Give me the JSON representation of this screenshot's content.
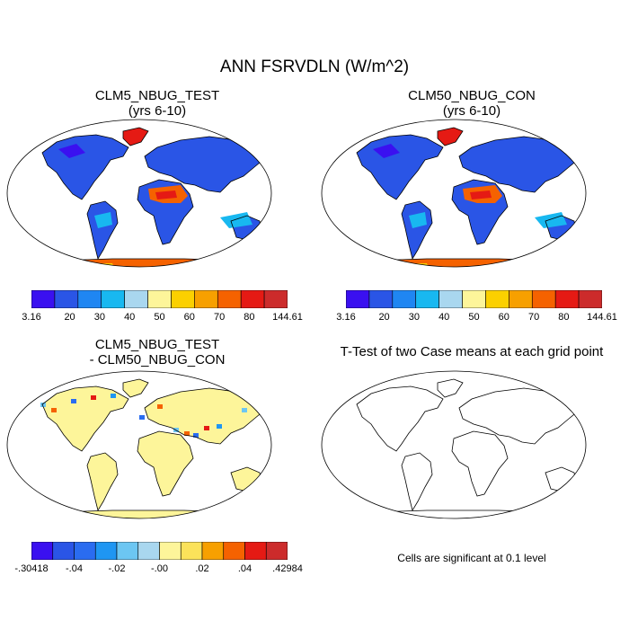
{
  "figure_title": "ANN FSRVDLN (W/m^2)",
  "panels": {
    "test": {
      "title_line1": "CLM5_NBUG_TEST",
      "title_line2": "(yrs 6-10)"
    },
    "control": {
      "title_line1": "CLM50_NBUG_CON",
      "title_line2": "(yrs 6-10)"
    },
    "diff": {
      "title_line1": "CLM5_NBUG_TEST",
      "title_line2": "- CLM50_NBUG_CON"
    },
    "ttest": {
      "title": "T-Test of two Case means at each grid point",
      "note": "Cells are significant at 0.1 level"
    }
  },
  "colorbar_main": {
    "colors": [
      "#3a10f0",
      "#2a55e6",
      "#1f86f2",
      "#18b8f0",
      "#a9d7ef",
      "#fdf59a",
      "#fbd000",
      "#f7a000",
      "#f56200",
      "#e51a14",
      "#cc2b2b"
    ],
    "labels": [
      "3.16",
      "20",
      "30",
      "40",
      "50",
      "60",
      "70",
      "80",
      "144.61"
    ]
  },
  "colorbar_diff": {
    "colors": [
      "#3a10f0",
      "#2a55e6",
      "#2a6cf0",
      "#1f96f2",
      "#6cc6f2",
      "#a9d7ef",
      "#fdf59a",
      "#fbe25a",
      "#f7a000",
      "#f56200",
      "#e51a14",
      "#cc2b2b"
    ],
    "labels": [
      "-.30418",
      "-.04",
      "-.02",
      "-.00",
      ".02",
      ".04",
      ".42984"
    ]
  },
  "palette": {
    "ocean": "#ffffff",
    "coast": "#000000",
    "diff_bg": "#fdf59a"
  }
}
